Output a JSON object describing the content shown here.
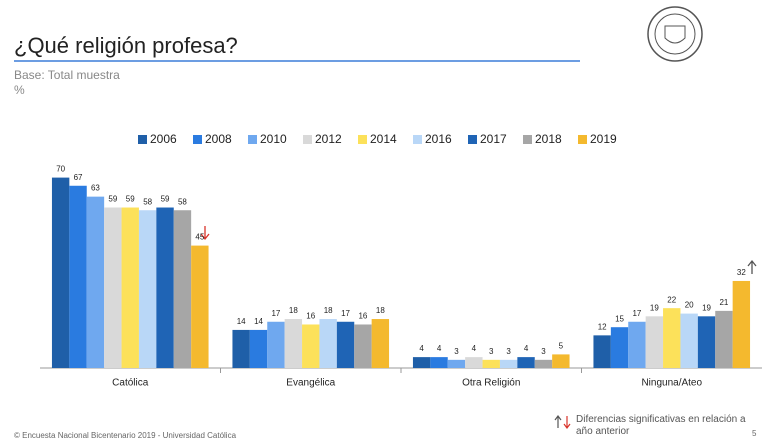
{
  "chart_data": {
    "type": "bar",
    "title": "¿Qué religión profesa?",
    "subtitle": "Base: Total muestra",
    "unit_label": "%",
    "categories": [
      "Católica",
      "Evangélica",
      "Otra Religión",
      "Ninguna/Ateo"
    ],
    "series": [
      {
        "name": "2006",
        "color": "#1f5fa8",
        "values": [
          70,
          14,
          4,
          12
        ]
      },
      {
        "name": "2008",
        "color": "#2a7be0",
        "values": [
          67,
          14,
          4,
          15
        ]
      },
      {
        "name": "2010",
        "color": "#6fa8ef",
        "values": [
          63,
          17,
          3,
          17
        ]
      },
      {
        "name": "2012",
        "color": "#d9d9d9",
        "values": [
          59,
          18,
          4,
          19
        ]
      },
      {
        "name": "2014",
        "color": "#fce15a",
        "values": [
          59,
          16,
          3,
          22
        ]
      },
      {
        "name": "2016",
        "color": "#b9d7f7",
        "values": [
          58,
          18,
          3,
          20
        ]
      },
      {
        "name": "2017",
        "color": "#1f64b5",
        "values": [
          59,
          17,
          4,
          19
        ]
      },
      {
        "name": "2018",
        "color": "#a6a6a6",
        "values": [
          58,
          16,
          3,
          21
        ]
      },
      {
        "name": "2019",
        "color": "#f4b92e",
        "values": [
          45,
          18,
          5,
          32
        ]
      }
    ],
    "legend_position": "top",
    "note": "Diferencias significativas en relación a año anterior",
    "footer": "© Encuesta Nacional Bicentenario 2019 - Universidad Católica",
    "page_number": "5"
  }
}
